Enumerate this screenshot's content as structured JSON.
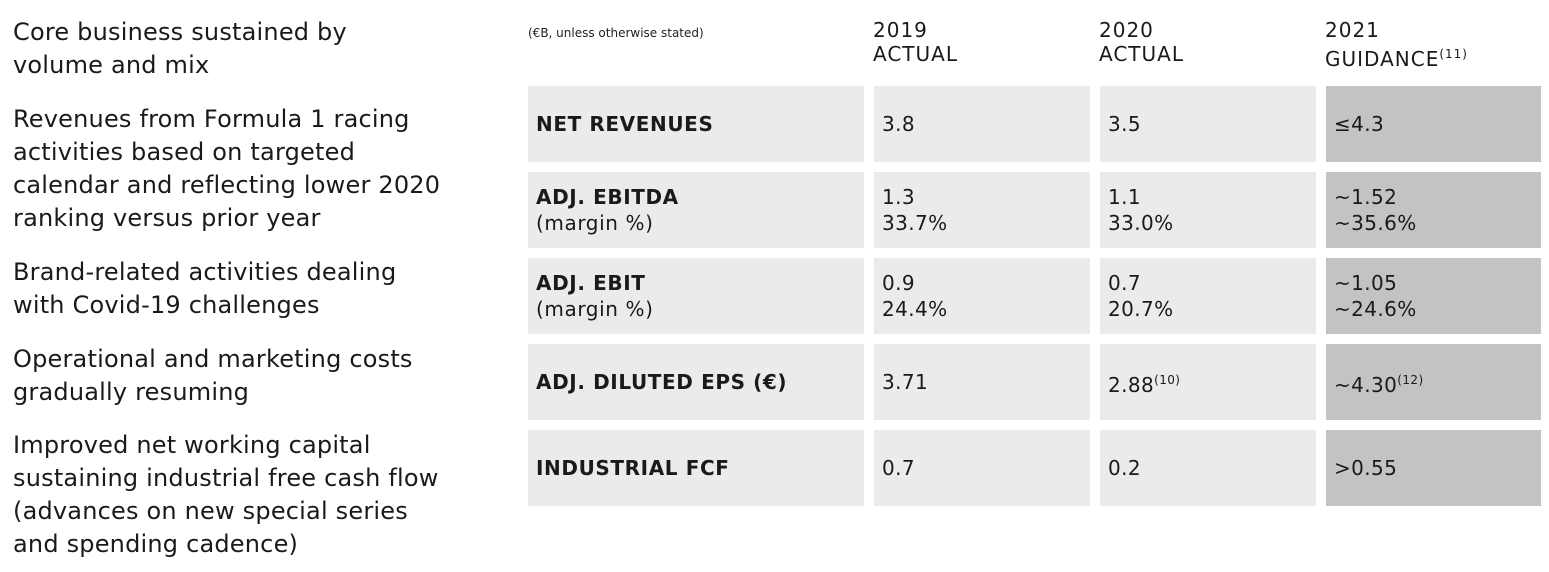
{
  "bullets": [
    "Core business sustained by\nvolume and mix",
    "Revenues from Formula 1 racing\nactivities based on targeted\ncalendar and reflecting lower 2020\nranking versus prior year",
    "Brand-related activities dealing\nwith Covid-19 challenges",
    "Operational and marketing costs\ngradually resuming",
    "Improved net working capital\nsustaining industrial free cash flow\n(advances on new special series\nand spending cadence)"
  ],
  "table": {
    "note": "(€B, unless otherwise stated)",
    "headers": {
      "y2019": "2019\nACTUAL",
      "y2020": "2020\nACTUAL",
      "y2021": "2021\nGUIDANCE",
      "y2021_footnote": "(11)"
    },
    "rows": [
      {
        "label": "NET REVENUES",
        "sublabel": "",
        "v2019": "3.8",
        "v2019b": "",
        "v2020": "3.5",
        "v2020b": "",
        "v2020_fn": "",
        "v2021": "≤4.3",
        "v2021b": "",
        "v2021_fn": ""
      },
      {
        "label": "ADJ. EBITDA",
        "sublabel": "(margin %)",
        "v2019": "1.3",
        "v2019b": "33.7%",
        "v2020": "1.1",
        "v2020b": "33.0%",
        "v2020_fn": "",
        "v2021": "~1.52",
        "v2021b": "~35.6%",
        "v2021_fn": ""
      },
      {
        "label": "ADJ. EBIT",
        "sublabel": "(margin %)",
        "v2019": "0.9",
        "v2019b": "24.4%",
        "v2020": "0.7",
        "v2020b": "20.7%",
        "v2020_fn": "",
        "v2021": "~1.05",
        "v2021b": "~24.6%",
        "v2021_fn": ""
      },
      {
        "label": "ADJ. DILUTED EPS (€)",
        "sublabel": "",
        "v2019": "3.71",
        "v2019b": "",
        "v2020": "2.88",
        "v2020b": "",
        "v2020_fn": "(10)",
        "v2021": "~4.30",
        "v2021b": "",
        "v2021_fn": "(12)"
      },
      {
        "label": "INDUSTRIAL FCF",
        "sublabel": "",
        "v2019": "0.7",
        "v2019b": "",
        "v2020": "0.2",
        "v2020b": "",
        "v2020_fn": "",
        "v2021": ">0.55",
        "v2021b": "",
        "v2021_fn": ""
      }
    ]
  },
  "colors": {
    "cell_bg": "#ebebeb",
    "guidance_bg": "#c3c3c3",
    "text": "#1a1a1a"
  }
}
